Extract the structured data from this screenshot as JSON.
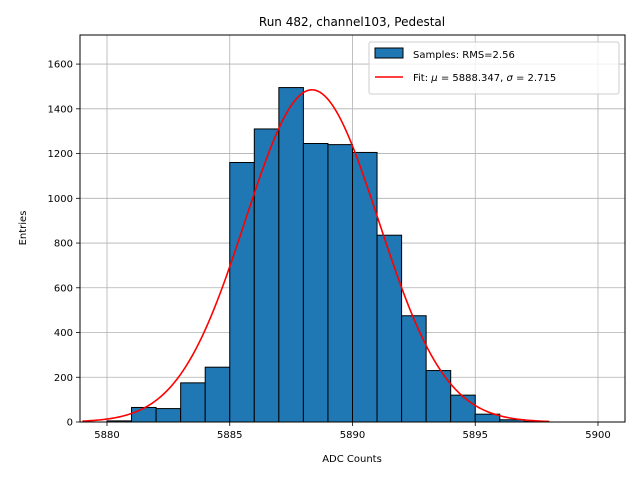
{
  "chart_data": {
    "type": "bar",
    "title": "Run 482, channel103, Pedestal",
    "xlabel": "ADC Counts",
    "ylabel": "Entries",
    "xlim": [
      5878.9,
      5901.1
    ],
    "ylim": [
      0,
      1730
    ],
    "xticks": [
      5880,
      5885,
      5890,
      5895,
      5900
    ],
    "yticks": [
      0,
      200,
      400,
      600,
      800,
      1000,
      1200,
      1400,
      1600
    ],
    "grid": true,
    "legend_position": "top-right",
    "histogram": {
      "label": "Samples: RMS=2.56",
      "color": "#1f77b4",
      "bins": [
        {
          "x0": 5880,
          "x1": 5881,
          "count": 5
        },
        {
          "x0": 5881,
          "x1": 5882,
          "count": 65
        },
        {
          "x0": 5882,
          "x1": 5883,
          "count": 60
        },
        {
          "x0": 5883,
          "x1": 5884,
          "count": 175
        },
        {
          "x0": 5884,
          "x1": 5885,
          "count": 245
        },
        {
          "x0": 5885,
          "x1": 5886,
          "count": 1160
        },
        {
          "x0": 5886,
          "x1": 5887,
          "count": 1310
        },
        {
          "x0": 5887,
          "x1": 5888,
          "count": 1495
        },
        {
          "x0": 5888,
          "x1": 5889,
          "count": 1245
        },
        {
          "x0": 5889,
          "x1": 5890,
          "count": 1240
        },
        {
          "x0": 5890,
          "x1": 5891,
          "count": 1205
        },
        {
          "x0": 5891,
          "x1": 5892,
          "count": 835
        },
        {
          "x0": 5892,
          "x1": 5893,
          "count": 475
        },
        {
          "x0": 5893,
          "x1": 5894,
          "count": 230
        },
        {
          "x0": 5894,
          "x1": 5895,
          "count": 120
        },
        {
          "x0": 5895,
          "x1": 5896,
          "count": 35
        },
        {
          "x0": 5896,
          "x1": 5897,
          "count": 10
        },
        {
          "x0": 5897,
          "x1": 5898,
          "count": 2
        }
      ]
    },
    "fit": {
      "label_prefix": "Fit: ",
      "mu_symbol": "μ",
      "mu_text": " = 5888.347, ",
      "sigma_symbol": "σ",
      "sigma_text": " = 2.715",
      "color": "#ff0000",
      "mu": 5888.347,
      "sigma": 2.715,
      "amplitude": 1485,
      "x_range": [
        5879,
        5898
      ]
    }
  }
}
